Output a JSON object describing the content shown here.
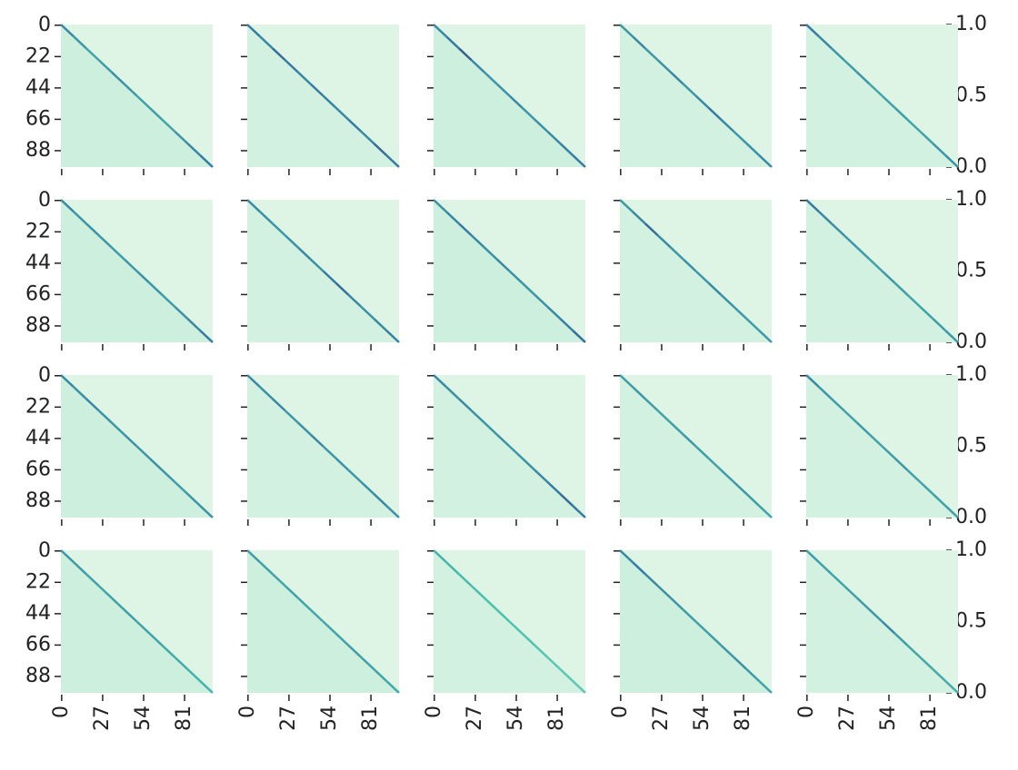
{
  "chart_data": [
    {
      "type": "colorbar",
      "ylim": [
        0,
        1
      ],
      "yticks": [
        {
          "value": 0,
          "label": "0.0"
        },
        {
          "value": 0.5,
          "label": "0.5"
        },
        {
          "value": 1,
          "label": "1.0"
        }
      ],
      "colors": [
        "#def5e5",
        "#49c1ad",
        "#357ba3",
        "#3e356b",
        "#0b0405"
      ]
    },
    {
      "type": "heatmap",
      "xlim": [
        0,
        100
      ],
      "ylim": [
        0,
        100
      ],
      "xticks": [
        0,
        27,
        54,
        81
      ],
      "yticks": [
        0,
        22,
        44,
        66,
        88
      ],
      "xticklabels": false,
      "yticklabels": true,
      "upper_value": 0.0,
      "lower_value": 0.03,
      "diagonal_values": [
        0.45,
        0.4,
        0.35,
        0.38,
        0.42,
        0.4,
        0.36,
        0.38,
        0.35,
        0.4,
        0.45,
        0.5
      ]
    },
    {
      "type": "heatmap",
      "xlim": [
        0,
        100
      ],
      "ylim": [
        0,
        100
      ],
      "xticks": [
        0,
        27,
        54,
        81
      ],
      "yticks": [
        0,
        22,
        44,
        66,
        88
      ],
      "xticklabels": false,
      "yticklabels": false,
      "upper_value": 0.0,
      "lower_value": 0.02,
      "diagonal_values": [
        0.5,
        0.45,
        0.55,
        0.5,
        0.45,
        0.5,
        0.48,
        0.45,
        0.5,
        0.45,
        0.55,
        0.5
      ]
    },
    {
      "type": "heatmap",
      "xlim": [
        0,
        100
      ],
      "ylim": [
        0,
        100
      ],
      "xticks": [
        0,
        27,
        54,
        81
      ],
      "yticks": [
        0,
        22,
        44,
        66,
        88
      ],
      "xticklabels": false,
      "yticklabels": false,
      "upper_value": 0.0,
      "lower_value": 0.03,
      "diagonal_values": [
        0.45,
        0.5,
        0.6,
        0.45,
        0.4,
        0.42,
        0.45,
        0.4,
        0.42,
        0.45,
        0.48,
        0.5
      ]
    },
    {
      "type": "heatmap",
      "xlim": [
        0,
        100
      ],
      "ylim": [
        0,
        100
      ],
      "xticks": [
        0,
        27,
        54,
        81
      ],
      "yticks": [
        0,
        22,
        44,
        66,
        88
      ],
      "xticklabels": false,
      "yticklabels": false,
      "upper_value": 0.0,
      "lower_value": 0.02,
      "diagonal_values": [
        0.4,
        0.45,
        0.4,
        0.42,
        0.45,
        0.4,
        0.45,
        0.5,
        0.45,
        0.4,
        0.42,
        0.45
      ]
    },
    {
      "type": "heatmap",
      "xlim": [
        0,
        100
      ],
      "ylim": [
        0,
        100
      ],
      "xticks": [
        0,
        27,
        54,
        81
      ],
      "yticks": [
        0,
        22,
        44,
        66,
        88
      ],
      "xticklabels": false,
      "yticklabels": false,
      "upper_value": 0.0,
      "lower_value": 0.02,
      "diagonal_values": [
        0.5,
        0.45,
        0.4,
        0.38,
        0.4,
        0.35,
        0.36,
        0.38,
        0.35,
        0.36,
        0.4,
        0.42
      ]
    },
    {
      "type": "colorbar",
      "ylim": [
        0,
        1
      ],
      "yticks": [
        {
          "value": 0,
          "label": "0.0"
        },
        {
          "value": 0.5,
          "label": "0.5"
        },
        {
          "value": 1,
          "label": "1.0"
        }
      ],
      "colors": [
        "#def5e5",
        "#49c1ad",
        "#357ba3",
        "#3e356b",
        "#0b0405"
      ]
    },
    {
      "type": "heatmap",
      "xlim": [
        0,
        100
      ],
      "ylim": [
        0,
        100
      ],
      "xticks": [
        0,
        27,
        54,
        81
      ],
      "yticks": [
        0,
        22,
        44,
        66,
        88
      ],
      "xticklabels": false,
      "yticklabels": true,
      "upper_value": 0.0,
      "lower_value": 0.03,
      "diagonal_values": [
        0.45,
        0.4,
        0.42,
        0.4,
        0.38,
        0.4,
        0.42,
        0.4,
        0.38,
        0.42,
        0.45,
        0.5
      ]
    },
    {
      "type": "heatmap",
      "xlim": [
        0,
        100
      ],
      "ylim": [
        0,
        100
      ],
      "xticks": [
        0,
        27,
        54,
        81
      ],
      "yticks": [
        0,
        22,
        44,
        66,
        88
      ],
      "xticklabels": false,
      "yticklabels": false,
      "upper_value": 0.0,
      "lower_value": 0.02,
      "diagonal_values": [
        0.45,
        0.42,
        0.4,
        0.42,
        0.45,
        0.42,
        0.5,
        0.55,
        0.45,
        0.42,
        0.45,
        0.48
      ]
    },
    {
      "type": "heatmap",
      "xlim": [
        0,
        100
      ],
      "ylim": [
        0,
        100
      ],
      "xticks": [
        0,
        27,
        54,
        81
      ],
      "yticks": [
        0,
        22,
        44,
        66,
        88
      ],
      "xticklabels": false,
      "yticklabels": false,
      "upper_value": 0.0,
      "lower_value": 0.03,
      "diagonal_values": [
        0.42,
        0.45,
        0.5,
        0.45,
        0.42,
        0.45,
        0.42,
        0.4,
        0.42,
        0.45,
        0.48,
        0.55
      ]
    },
    {
      "type": "heatmap",
      "xlim": [
        0,
        100
      ],
      "ylim": [
        0,
        100
      ],
      "xticks": [
        0,
        27,
        54,
        81
      ],
      "yticks": [
        0,
        22,
        44,
        66,
        88
      ],
      "xticklabels": false,
      "yticklabels": false,
      "upper_value": 0.0,
      "lower_value": 0.02,
      "diagonal_values": [
        0.4,
        0.45,
        0.55,
        0.45,
        0.4,
        0.42,
        0.4,
        0.45,
        0.42,
        0.4,
        0.38,
        0.4
      ]
    },
    {
      "type": "heatmap",
      "xlim": [
        0,
        100
      ],
      "ylim": [
        0,
        100
      ],
      "xticks": [
        0,
        27,
        54,
        81
      ],
      "yticks": [
        0,
        22,
        44,
        66,
        88
      ],
      "xticklabels": false,
      "yticklabels": false,
      "upper_value": 0.0,
      "lower_value": 0.02,
      "diagonal_values": [
        0.5,
        0.45,
        0.42,
        0.4,
        0.38,
        0.36,
        0.4,
        0.38,
        0.35,
        0.36,
        0.38,
        0.4
      ]
    },
    {
      "type": "colorbar",
      "ylim": [
        0,
        1
      ],
      "yticks": [
        {
          "value": 0,
          "label": "0.0"
        },
        {
          "value": 0.5,
          "label": "0.5"
        },
        {
          "value": 1,
          "label": "1.0"
        }
      ],
      "colors": [
        "#def5e5",
        "#49c1ad",
        "#357ba3",
        "#3e356b",
        "#0b0405"
      ]
    },
    {
      "type": "heatmap",
      "xlim": [
        0,
        100
      ],
      "ylim": [
        0,
        100
      ],
      "xticks": [
        0,
        27,
        54,
        81
      ],
      "yticks": [
        0,
        22,
        44,
        66,
        88
      ],
      "xticklabels": false,
      "yticklabels": true,
      "upper_value": 0.0,
      "lower_value": 0.03,
      "diagonal_values": [
        0.45,
        0.42,
        0.45,
        0.42,
        0.4,
        0.42,
        0.4,
        0.42,
        0.4,
        0.38,
        0.4,
        0.42
      ]
    },
    {
      "type": "heatmap",
      "xlim": [
        0,
        100
      ],
      "ylim": [
        0,
        100
      ],
      "xticks": [
        0,
        27,
        54,
        81
      ],
      "yticks": [
        0,
        22,
        44,
        66,
        88
      ],
      "xticklabels": false,
      "yticklabels": false,
      "upper_value": 0.0,
      "lower_value": 0.02,
      "diagonal_values": [
        0.45,
        0.42,
        0.45,
        0.4,
        0.42,
        0.45,
        0.4,
        0.42,
        0.4,
        0.42,
        0.45,
        0.42
      ]
    },
    {
      "type": "heatmap",
      "xlim": [
        0,
        100
      ],
      "ylim": [
        0,
        100
      ],
      "xticks": [
        0,
        27,
        54,
        81
      ],
      "yticks": [
        0,
        22,
        44,
        66,
        88
      ],
      "xticklabels": false,
      "yticklabels": false,
      "upper_value": 0.0,
      "lower_value": 0.02,
      "diagonal_values": [
        0.45,
        0.42,
        0.45,
        0.42,
        0.4,
        0.42,
        0.4,
        0.42,
        0.45,
        0.5,
        0.55,
        0.5
      ]
    },
    {
      "type": "heatmap",
      "xlim": [
        0,
        100
      ],
      "ylim": [
        0,
        100
      ],
      "xticks": [
        0,
        27,
        54,
        81
      ],
      "yticks": [
        0,
        22,
        44,
        66,
        88
      ],
      "xticklabels": false,
      "yticklabels": false,
      "upper_value": 0.0,
      "lower_value": 0.02,
      "diagonal_values": [
        0.38,
        0.4,
        0.38,
        0.36,
        0.38,
        0.4,
        0.38,
        0.36,
        0.38,
        0.4,
        0.38,
        0.36
      ]
    },
    {
      "type": "heatmap",
      "xlim": [
        0,
        100
      ],
      "ylim": [
        0,
        100
      ],
      "xticks": [
        0,
        27,
        54,
        81
      ],
      "yticks": [
        0,
        22,
        44,
        66,
        88
      ],
      "xticklabels": false,
      "yticklabels": false,
      "upper_value": 0.0,
      "lower_value": 0.02,
      "diagonal_values": [
        0.45,
        0.4,
        0.38,
        0.36,
        0.38,
        0.36,
        0.38,
        0.4,
        0.36,
        0.35,
        0.36,
        0.38
      ]
    },
    {
      "type": "colorbar",
      "ylim": [
        0,
        1
      ],
      "yticks": [
        {
          "value": 0,
          "label": "0.0"
        },
        {
          "value": 0.5,
          "label": "0.5"
        },
        {
          "value": 1,
          "label": "1.0"
        }
      ],
      "colors": [
        "#def5e5",
        "#49c1ad",
        "#357ba3",
        "#3e356b",
        "#0b0405"
      ]
    },
    {
      "type": "heatmap",
      "xlim": [
        0,
        100
      ],
      "ylim": [
        0,
        100
      ],
      "xticks": [
        0,
        27,
        54,
        81
      ],
      "yticks": [
        0,
        22,
        44,
        66,
        88
      ],
      "xticklabels": true,
      "yticklabels": true,
      "upper_value": 0.0,
      "lower_value": 0.03,
      "diagonal_values": [
        0.4,
        0.38,
        0.36,
        0.35,
        0.36,
        0.38,
        0.36,
        0.35,
        0.33,
        0.32,
        0.3,
        0.3
      ]
    },
    {
      "type": "heatmap",
      "xlim": [
        0,
        100
      ],
      "ylim": [
        0,
        100
      ],
      "xticks": [
        0,
        27,
        54,
        81
      ],
      "yticks": [
        0,
        22,
        44,
        66,
        88
      ],
      "xticklabels": true,
      "yticklabels": false,
      "upper_value": 0.0,
      "lower_value": 0.03,
      "diagonal_values": [
        0.38,
        0.36,
        0.35,
        0.36,
        0.35,
        0.34,
        0.35,
        0.36,
        0.38,
        0.36,
        0.35,
        0.34
      ]
    },
    {
      "type": "heatmap",
      "xlim": [
        0,
        100
      ],
      "ylim": [
        0,
        100
      ],
      "xticks": [
        0,
        27,
        54,
        81
      ],
      "yticks": [
        0,
        22,
        44,
        66,
        88
      ],
      "xticklabels": true,
      "yticklabels": false,
      "upper_value": 0.0,
      "lower_value": 0.02,
      "diagonal_values": [
        0.3,
        0.28,
        0.27,
        0.26,
        0.25,
        0.25,
        0.24,
        0.24,
        0.23,
        0.22,
        0.22,
        0.22
      ]
    },
    {
      "type": "heatmap",
      "xlim": [
        0,
        100
      ],
      "ylim": [
        0,
        100
      ],
      "xticks": [
        0,
        27,
        54,
        81
      ],
      "yticks": [
        0,
        22,
        44,
        66,
        88
      ],
      "xticklabels": true,
      "yticklabels": false,
      "upper_value": 0.0,
      "lower_value": 0.03,
      "diagonal_values": [
        0.45,
        0.5,
        0.45,
        0.42,
        0.4,
        0.38,
        0.36,
        0.38,
        0.4,
        0.42,
        0.38,
        0.35
      ]
    },
    {
      "type": "heatmap",
      "xlim": [
        0,
        100
      ],
      "ylim": [
        0,
        100
      ],
      "xticks": [
        0,
        27,
        54,
        81
      ],
      "yticks": [
        0,
        22,
        44,
        66,
        88
      ],
      "xticklabels": true,
      "yticklabels": false,
      "upper_value": 0.0,
      "lower_value": 0.02,
      "diagonal_values": [
        0.38,
        0.36,
        0.35,
        0.36,
        0.38,
        0.4,
        0.45,
        0.38,
        0.35,
        0.34,
        0.33,
        0.32
      ]
    }
  ]
}
